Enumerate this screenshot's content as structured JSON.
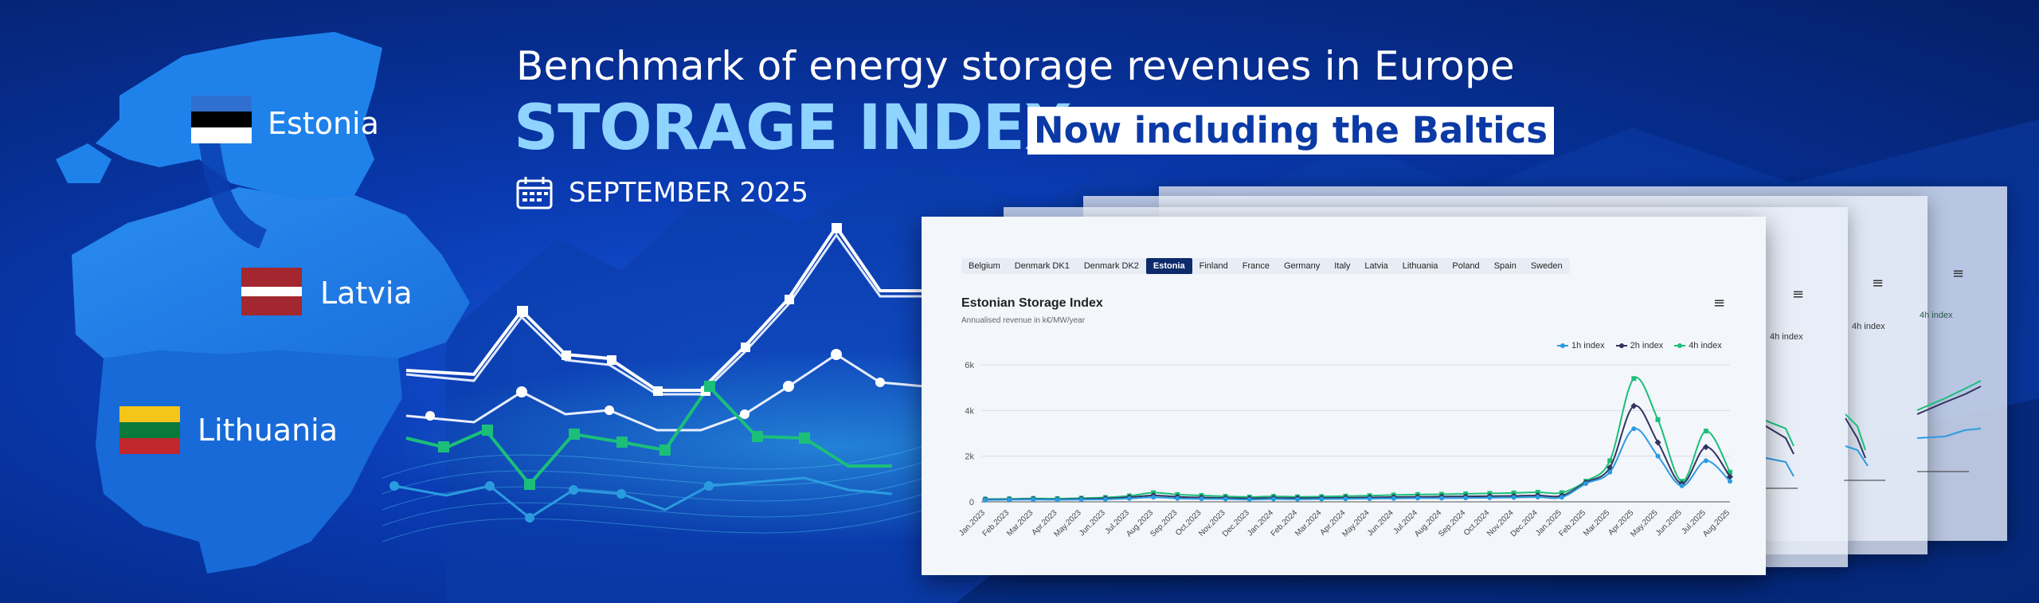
{
  "header": {
    "subtitle": "Benchmark of energy storage revenues in Europe",
    "title": "STORAGE INDEX",
    "badge": "Now including the Baltics",
    "date": "SEPTEMBER 2025"
  },
  "countries": [
    {
      "name": "Estonia",
      "flag": [
        "#2f6fcf",
        "#000000",
        "#ffffff"
      ]
    },
    {
      "name": "Latvia",
      "flag": [
        "#a2272e",
        "#ffffff",
        "#a2272e"
      ]
    },
    {
      "name": "Lithuania",
      "flag": [
        "#f5c519",
        "#0a7a3a",
        "#c1272d"
      ]
    }
  ],
  "screenshot": {
    "tabs": [
      "Belgium",
      "Denmark DK1",
      "Denmark DK2",
      "Estonia",
      "Finland",
      "France",
      "Germany",
      "Italy",
      "Latvia",
      "Lithuania",
      "Poland",
      "Spain",
      "Sweden"
    ],
    "active_tab": "Estonia",
    "menu_icon": "hamburger-menu-icon",
    "side_labels": {
      "a": "4h index",
      "b": "4h index",
      "c": "4h index"
    }
  },
  "colors": {
    "series_1h": "#2b9be0",
    "series_2h": "#33335e",
    "series_4h": "#1bbf7a",
    "title_accent": "#8fd3ff",
    "badge_text": "#0b3aa6"
  },
  "chart_data": {
    "type": "line",
    "title": "Estonian Storage Index",
    "subtitle": "Annualised revenue in k€/MW/year",
    "yticks": [
      "0",
      "2k",
      "4k",
      "6k"
    ],
    "ylim": [
      0,
      6000
    ],
    "categories": [
      "Jan.2023",
      "Feb.2023",
      "Mar.2023",
      "Apr.2023",
      "May.2023",
      "Jun.2023",
      "Jul.2023",
      "Aug.2023",
      "Sep.2023",
      "Oct.2023",
      "Nov.2023",
      "Dec.2023",
      "Jan.2024",
      "Feb.2024",
      "Mar.2024",
      "Apr.2024",
      "May.2024",
      "Jun.2024",
      "Jul.2024",
      "Aug.2024",
      "Sep.2024",
      "Oct.2024",
      "Nov.2024",
      "Dec.2024",
      "Jan.2025",
      "Feb.2025",
      "Mar.2025",
      "Apr.2025",
      "May.2025",
      "Jun.2025",
      "Jul.2025",
      "Aug.2025"
    ],
    "series": [
      {
        "name": "1h index",
        "values": [
          80,
          90,
          100,
          90,
          100,
          110,
          150,
          200,
          150,
          130,
          120,
          100,
          120,
          110,
          120,
          130,
          140,
          150,
          160,
          160,
          170,
          180,
          190,
          210,
          200,
          800,
          1300,
          3200,
          2000,
          700,
          1800,
          900
        ]
      },
      {
        "name": "2h index",
        "values": [
          100,
          110,
          120,
          110,
          130,
          150,
          200,
          280,
          220,
          190,
          170,
          150,
          170,
          160,
          170,
          180,
          190,
          210,
          220,
          230,
          240,
          250,
          260,
          280,
          270,
          850,
          1500,
          4200,
          2600,
          800,
          2400,
          1100
        ]
      },
      {
        "name": "4h index",
        "values": [
          120,
          130,
          150,
          140,
          160,
          190,
          260,
          400,
          320,
          280,
          240,
          210,
          240,
          220,
          230,
          250,
          270,
          300,
          320,
          330,
          350,
          370,
          390,
          420,
          400,
          900,
          1800,
          5400,
          3600,
          900,
          3100,
          1300
        ]
      }
    ],
    "legend_position": "top-right",
    "grid": true
  }
}
